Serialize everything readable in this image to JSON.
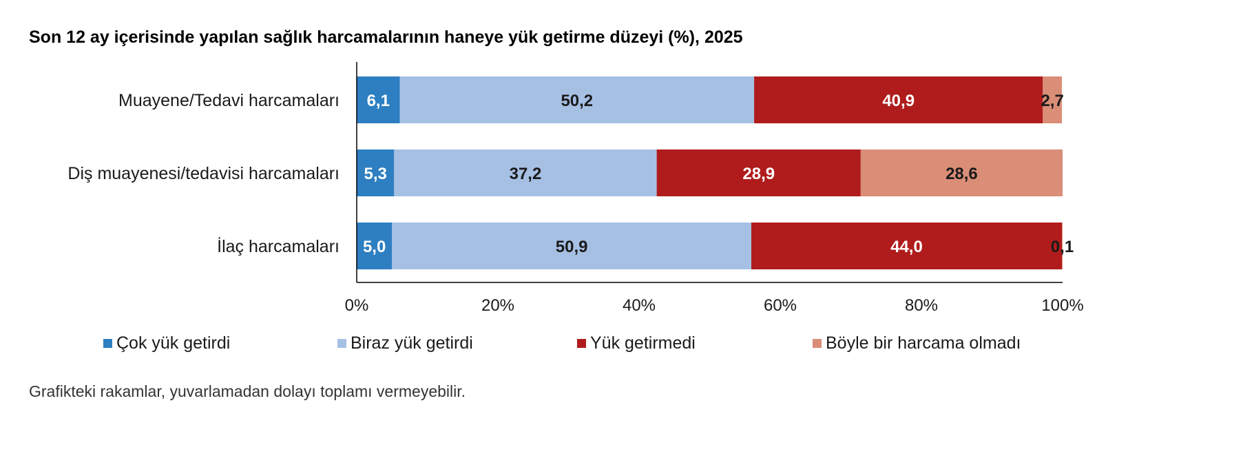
{
  "title": "Son 12 ay içerisinde yapılan sağlık harcamalarının haneye yük getirme düzeyi (%), 2025",
  "footnote": "Grafikteki rakamlar, yuvarlamadan dolayı toplamı vermeyebilir.",
  "chart_data": {
    "type": "bar",
    "orientation": "horizontal",
    "stacked": true,
    "title": "Son 12 ay içerisinde yapılan sağlık harcamalarının haneye yük getirme düzeyi (%), 2025",
    "categories": [
      "Muayene/Tedavi harcamaları",
      "Diş muayenesi/tedavisi harcamaları",
      "İlaç harcamaları"
    ],
    "series": [
      {
        "name": "Çok yük getirdi",
        "color": "#2e7fc1",
        "label_color": "#ffffff",
        "values": [
          6.1,
          5.3,
          5.0
        ],
        "labels": [
          "6,1",
          "5,3",
          "5,0"
        ]
      },
      {
        "name": "Biraz yük getirdi",
        "color": "#a6c0e4",
        "label_color": "#1a1a1a",
        "values": [
          50.2,
          37.2,
          50.9
        ],
        "labels": [
          "50,2",
          "37,2",
          "50,9"
        ]
      },
      {
        "name": "Yük getirmedi",
        "color": "#b01c1c",
        "label_color": "#ffffff",
        "values": [
          40.9,
          28.9,
          44.0
        ],
        "labels": [
          "40,9",
          "28,9",
          "44,0"
        ]
      },
      {
        "name": "Böyle bir harcama olmadı",
        "color": "#da8d77",
        "label_color": "#1a1a1a",
        "values": [
          2.7,
          28.6,
          0.1
        ],
        "labels": [
          "2,7",
          "28,6",
          "0,1"
        ]
      }
    ],
    "xlim": [
      0,
      100
    ],
    "xticks": [
      "0%",
      "20%",
      "40%",
      "60%",
      "80%",
      "100%"
    ],
    "grid": false,
    "legend_position": "bottom"
  }
}
